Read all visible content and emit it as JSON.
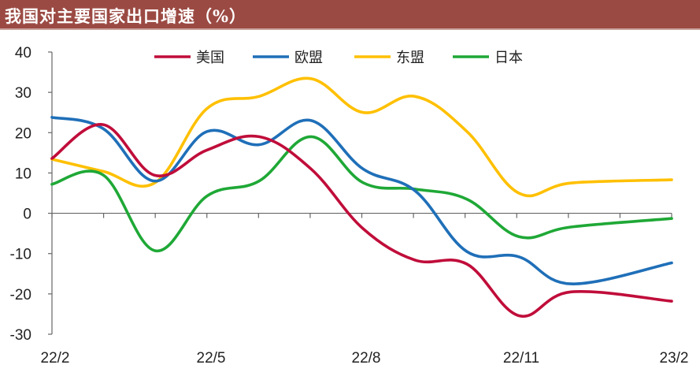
{
  "header": {
    "title": "我国对主要国家出口增速（%）",
    "bar_color": "#9b4a43"
  },
  "chart_data": {
    "type": "line",
    "title": "我国对主要国家出口增速（%）",
    "xlabel": "",
    "ylabel": "",
    "x_ticks": [
      "22/2",
      "22/5",
      "22/8",
      "22/11",
      "23/2"
    ],
    "ylim": [
      -30,
      40
    ],
    "y_ticks": [
      40,
      30,
      20,
      10,
      0,
      -10,
      -20,
      -30
    ],
    "grid": false,
    "legend_position": "top",
    "x": [
      "2022-02",
      "2022-03",
      "2022-04",
      "2022-05",
      "2022-06",
      "2022-07",
      "2022-08",
      "2022-09",
      "2022-10",
      "2022-11",
      "2022-12",
      "2023-02"
    ],
    "series": [
      {
        "name": "美国",
        "color": "#c00d3a",
        "values": [
          13.6,
          22.0,
          9.4,
          15.7,
          19.0,
          11.0,
          -3.8,
          -11.6,
          -12.6,
          -25.4,
          -19.5,
          -21.8
        ]
      },
      {
        "name": "欧盟",
        "color": "#1f6fb8",
        "values": [
          23.8,
          21.0,
          8.0,
          20.3,
          17.0,
          23.0,
          11.0,
          5.6,
          -9.5,
          -10.8,
          -17.5,
          -12.3
        ]
      },
      {
        "name": "东盟",
        "color": "#ffc000",
        "values": [
          13.4,
          10.4,
          7.6,
          26.0,
          29.0,
          33.4,
          25.0,
          29.0,
          20.3,
          5.0,
          7.5,
          8.3
        ]
      },
      {
        "name": "日本",
        "color": "#1fa836",
        "values": [
          7.2,
          9.5,
          -9.3,
          4.3,
          8.0,
          19.0,
          7.6,
          6.0,
          3.5,
          -5.8,
          -3.4,
          -1.3
        ]
      }
    ]
  }
}
